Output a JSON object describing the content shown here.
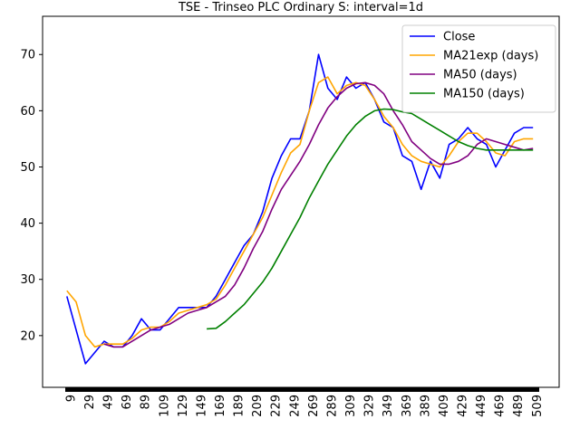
{
  "chart_data": {
    "type": "line",
    "title": "TSE - Trinseo PLC Ordinary S: interval=1d",
    "x": [
      5,
      15,
      25,
      35,
      45,
      55,
      65,
      75,
      85,
      95,
      105,
      115,
      125,
      135,
      145,
      155,
      165,
      175,
      185,
      195,
      205,
      215,
      225,
      235,
      245,
      255,
      265,
      275,
      285,
      295,
      305,
      315,
      325,
      335,
      345,
      355,
      365,
      375,
      385,
      395,
      405,
      415,
      425,
      435,
      445,
      455,
      465,
      475,
      485,
      495,
      505
    ],
    "series": [
      {
        "name": "Close",
        "color": "#0000ff",
        "values": [
          27,
          21,
          15,
          17,
          19,
          18,
          18,
          20,
          23,
          21,
          21,
          23,
          25,
          25,
          25,
          25,
          27,
          30,
          33,
          36,
          38,
          42,
          48,
          52,
          55,
          55,
          60,
          70,
          64,
          62,
          66,
          64,
          65,
          62,
          58,
          57,
          52,
          51,
          46,
          51,
          48,
          54,
          55,
          57,
          55,
          54,
          50,
          53,
          56,
          57,
          57
        ]
      },
      {
        "name": "MA21exp (days)",
        "color": "#ffa500",
        "values": [
          28,
          26,
          20,
          18,
          18.5,
          18.5,
          18.5,
          19.5,
          21,
          21.5,
          21.5,
          22.5,
          24,
          24.5,
          25,
          25.5,
          26.5,
          29,
          32,
          35,
          38,
          41,
          45,
          49,
          52.5,
          54,
          60,
          65,
          66,
          63,
          64.5,
          65,
          64.5,
          62,
          59,
          57,
          54,
          52,
          51,
          50.5,
          50,
          52,
          54.5,
          56,
          56,
          54.5,
          52.5,
          52,
          54.5,
          55,
          55
        ]
      },
      {
        "name": "MA50 (days)",
        "color": "#800080",
        "values": [
          null,
          null,
          null,
          null,
          18.5,
          18,
          18,
          19,
          20,
          21,
          21.5,
          22,
          23,
          24,
          24.5,
          25,
          26,
          27,
          29,
          32,
          35.5,
          38.5,
          42.5,
          46,
          48.5,
          51,
          54,
          57.5,
          60.5,
          62.5,
          64,
          64.8,
          65,
          64.5,
          63,
          60,
          57.5,
          54.5,
          53,
          51.5,
          50.5,
          50.5,
          51,
          52,
          54,
          55,
          54.5,
          54,
          53.5,
          53,
          53.3
        ]
      },
      {
        "name": "MA150 (days)",
        "color": "#008000",
        "values": [
          null,
          null,
          null,
          null,
          null,
          null,
          null,
          null,
          null,
          null,
          null,
          null,
          null,
          null,
          null,
          21.2,
          21.3,
          22.5,
          24,
          25.5,
          27.5,
          29.5,
          32,
          35,
          38,
          41,
          44.5,
          47.5,
          50.5,
          53,
          55.5,
          57.5,
          59,
          60,
          60.3,
          60.2,
          59.8,
          59.5,
          58.5,
          57.5,
          56.5,
          55.5,
          54.5,
          53.8,
          53.3,
          53,
          53,
          53,
          53,
          53,
          53
        ]
      }
    ],
    "xlim": [
      -21,
      533
    ],
    "ylim": [
      10.8,
      76.8
    ],
    "xticks": [
      9,
      29,
      49,
      69,
      89,
      109,
      129,
      149,
      169,
      189,
      209,
      229,
      249,
      269,
      289,
      309,
      329,
      349,
      369,
      389,
      409,
      429,
      449,
      469,
      489,
      509
    ],
    "yticks": [
      20,
      30,
      40,
      50,
      60,
      70
    ],
    "legend": "upper right"
  }
}
